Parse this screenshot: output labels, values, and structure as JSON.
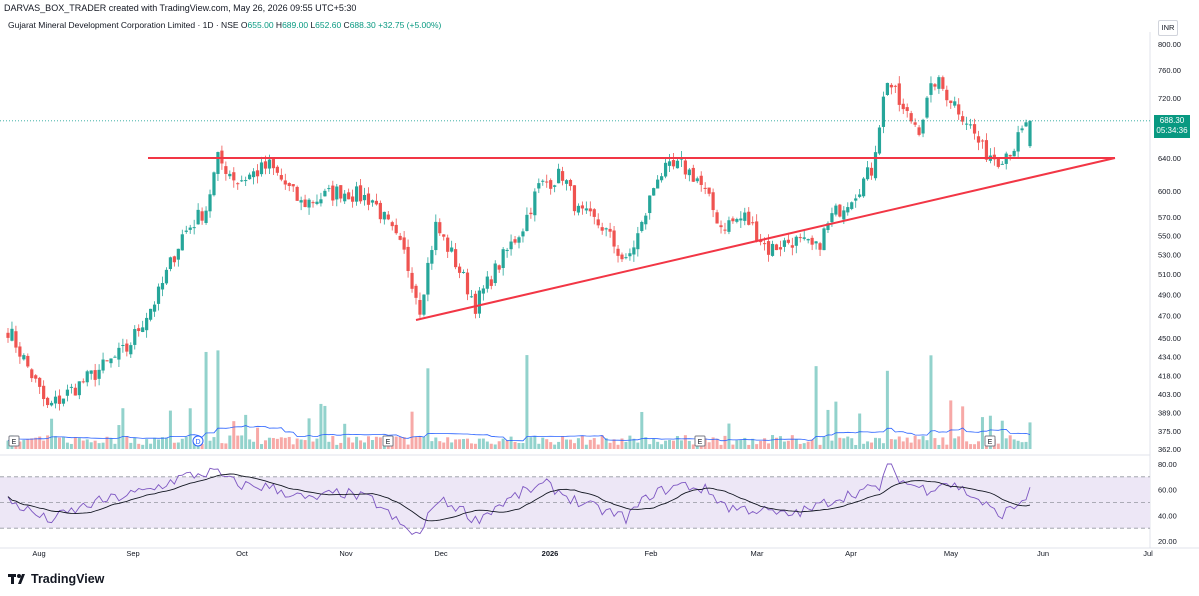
{
  "header": {
    "created_line": "DARVAS_BOX_TRADER created with TradingView.com, May 26, 2026 09:55 UTC+5:30",
    "symbol": "Gujarat Mineral Development Corporation Limited · 1D · NSE",
    "o_label": "O",
    "o_value": "655.00",
    "h_label": "H",
    "h_value": "689.00",
    "l_label": "L",
    "l_value": "652.60",
    "c_label": "C",
    "c_value": "688.30",
    "change": "+32.75 (+5.00%)"
  },
  "currency": "INR",
  "last_price": {
    "value": "688.30",
    "countdown": "05:34:36"
  },
  "brand": "TradingView",
  "colors": {
    "up": "#26a69a",
    "down": "#ef5350",
    "trendline": "#f23645",
    "rsi": "#7e57c2",
    "rsi_bg": "#ede7f6",
    "volume_ma": "#2962ff",
    "badge": "#089981"
  },
  "chart_data": [
    {
      "type": "candlestick",
      "title": "Gujarat Mineral Development Corporation Limited · 1D · NSE",
      "y_scale": "log",
      "price_axis_ticks": [
        "800.00",
        "760.00",
        "720.00",
        "680.00",
        "640.00",
        "600.00",
        "570.00",
        "550.00",
        "530.00",
        "510.00",
        "490.00",
        "470.00",
        "450.00",
        "434.00",
        "418.00",
        "403.00",
        "389.00",
        "375.00",
        "362.00"
      ],
      "time_axis_labels": [
        "Aug",
        "Sep",
        "Oct",
        "Nov",
        "Dec",
        "2026",
        "Feb",
        "Mar",
        "Apr",
        "May",
        "Jun",
        "Jul"
      ],
      "event_markers": [
        "E",
        "D",
        "E",
        "E",
        "E"
      ],
      "ohlc_last": {
        "open": 655.0,
        "high": 689.0,
        "low": 652.6,
        "close": 688.3
      },
      "close_waypoints": [
        {
          "day": 0,
          "close": 458
        },
        {
          "day": 10,
          "close": 392
        },
        {
          "day": 22,
          "close": 420
        },
        {
          "day": 30,
          "close": 440
        },
        {
          "day": 38,
          "close": 490
        },
        {
          "day": 44,
          "close": 550
        },
        {
          "day": 50,
          "close": 580
        },
        {
          "day": 53,
          "close": 638
        },
        {
          "day": 58,
          "close": 612
        },
        {
          "day": 66,
          "close": 630
        },
        {
          "day": 74,
          "close": 585
        },
        {
          "day": 84,
          "close": 600
        },
        {
          "day": 92,
          "close": 590
        },
        {
          "day": 100,
          "close": 530
        },
        {
          "day": 104,
          "close": 478
        },
        {
          "day": 108,
          "close": 560
        },
        {
          "day": 112,
          "close": 530
        },
        {
          "day": 118,
          "close": 480
        },
        {
          "day": 124,
          "close": 520
        },
        {
          "day": 130,
          "close": 560
        },
        {
          "day": 134,
          "close": 605
        },
        {
          "day": 140,
          "close": 620
        },
        {
          "day": 144,
          "close": 575
        },
        {
          "day": 150,
          "close": 560
        },
        {
          "day": 156,
          "close": 520
        },
        {
          "day": 160,
          "close": 560
        },
        {
          "day": 164,
          "close": 620
        },
        {
          "day": 170,
          "close": 630
        },
        {
          "day": 174,
          "close": 615
        },
        {
          "day": 180,
          "close": 560
        },
        {
          "day": 186,
          "close": 570
        },
        {
          "day": 192,
          "close": 535
        },
        {
          "day": 198,
          "close": 545
        },
        {
          "day": 204,
          "close": 535
        },
        {
          "day": 208,
          "close": 570
        },
        {
          "day": 214,
          "close": 600
        },
        {
          "day": 218,
          "close": 625
        },
        {
          "day": 222,
          "close": 748
        },
        {
          "day": 226,
          "close": 700
        },
        {
          "day": 230,
          "close": 680
        },
        {
          "day": 234,
          "close": 745
        },
        {
          "day": 238,
          "close": 720
        },
        {
          "day": 242,
          "close": 690
        },
        {
          "day": 246,
          "close": 650
        },
        {
          "day": 250,
          "close": 640
        },
        {
          "day": 254,
          "close": 655
        },
        {
          "day": 258,
          "close": 688.3
        }
      ],
      "resistance_line": {
        "price": 640,
        "from": "Sep",
        "to": "Jun"
      },
      "support_trendline": {
        "from_price": 466,
        "from": "Nov",
        "to_price": 640,
        "to": "Jun"
      }
    },
    {
      "type": "bar",
      "title": "Volume",
      "series": [
        {
          "name": "",
          "note_values_relative": [
            1.0
          ]
        }
      ],
      "spike_days": [
        50,
        53,
        106,
        131,
        204,
        222,
        233
      ]
    },
    {
      "type": "line",
      "title": "RSI",
      "y_ticks": [
        "80.00",
        "60.00",
        "40.00",
        "20.00"
      ],
      "bands": [
        30,
        50,
        70
      ],
      "ylim": [
        20,
        80
      ],
      "waypoints": [
        {
          "day": 0,
          "value": 52
        },
        {
          "day": 10,
          "value": 36
        },
        {
          "day": 22,
          "value": 50
        },
        {
          "day": 36,
          "value": 60
        },
        {
          "day": 44,
          "value": 70
        },
        {
          "day": 52,
          "value": 74
        },
        {
          "day": 58,
          "value": 64
        },
        {
          "day": 66,
          "value": 62
        },
        {
          "day": 76,
          "value": 52
        },
        {
          "day": 84,
          "value": 58
        },
        {
          "day": 92,
          "value": 52
        },
        {
          "day": 100,
          "value": 30
        },
        {
          "day": 104,
          "value": 24
        },
        {
          "day": 108,
          "value": 52
        },
        {
          "day": 114,
          "value": 46
        },
        {
          "day": 118,
          "value": 36
        },
        {
          "day": 124,
          "value": 48
        },
        {
          "day": 130,
          "value": 58
        },
        {
          "day": 136,
          "value": 64
        },
        {
          "day": 144,
          "value": 50
        },
        {
          "day": 150,
          "value": 44
        },
        {
          "day": 156,
          "value": 38
        },
        {
          "day": 162,
          "value": 56
        },
        {
          "day": 170,
          "value": 64
        },
        {
          "day": 176,
          "value": 60
        },
        {
          "day": 182,
          "value": 46
        },
        {
          "day": 190,
          "value": 44
        },
        {
          "day": 196,
          "value": 40
        },
        {
          "day": 202,
          "value": 44
        },
        {
          "day": 208,
          "value": 52
        },
        {
          "day": 214,
          "value": 58
        },
        {
          "day": 220,
          "value": 62
        },
        {
          "day": 222,
          "value": 80
        },
        {
          "day": 226,
          "value": 66
        },
        {
          "day": 232,
          "value": 60
        },
        {
          "day": 236,
          "value": 66
        },
        {
          "day": 240,
          "value": 62
        },
        {
          "day": 246,
          "value": 50
        },
        {
          "day": 250,
          "value": 40
        },
        {
          "day": 254,
          "value": 46
        },
        {
          "day": 258,
          "value": 58
        }
      ]
    }
  ]
}
